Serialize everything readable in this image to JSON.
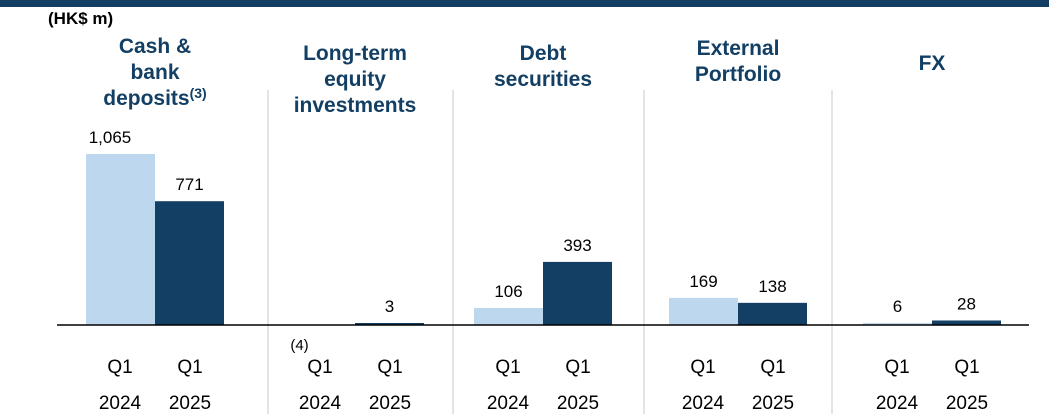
{
  "unit_label": "(HK$ m)",
  "colors": {
    "q1_2024": "#bdd7ee",
    "q1_2025": "#123f63",
    "title": "#123f63",
    "rule": "#123f63"
  },
  "chart_data": {
    "type": "bar",
    "ylabel": "(HK$ m)",
    "categories": [
      "Cash & bank deposits(3)",
      "Long-term equity investments",
      "Debt securities",
      "External Portfolio",
      "FX"
    ],
    "groups": [
      {
        "title_lines": [
          "Cash &",
          "bank",
          "deposits"
        ],
        "title_sup": "(3)"
      },
      {
        "title_lines": [
          "Long-term",
          "equity",
          "investments"
        ],
        "title_sup": ""
      },
      {
        "title_lines": [
          "Debt",
          "securities"
        ],
        "title_sup": ""
      },
      {
        "title_lines": [
          "External",
          "Portfolio"
        ],
        "title_sup": ""
      },
      {
        "title_lines": [
          "FX"
        ],
        "title_sup": ""
      }
    ],
    "x_tick_labels": [
      "Q1",
      "2024",
      "Q1",
      "2025"
    ],
    "series": [
      {
        "name": "Q1 2024",
        "values": [
          1065,
          null,
          106,
          169,
          6
        ],
        "labels": [
          "1,065",
          "",
          "106",
          "169",
          "6"
        ]
      },
      {
        "name": "Q1 2025",
        "values": [
          771,
          3,
          393,
          138,
          28
        ],
        "labels": [
          "771",
          "3",
          "393",
          "138",
          "28"
        ]
      }
    ],
    "annotations": [
      {
        "group": 1,
        "series": 0,
        "text": "(4)"
      }
    ],
    "ylim": [
      0,
      1065
    ],
    "grid": false,
    "legend": "none"
  }
}
